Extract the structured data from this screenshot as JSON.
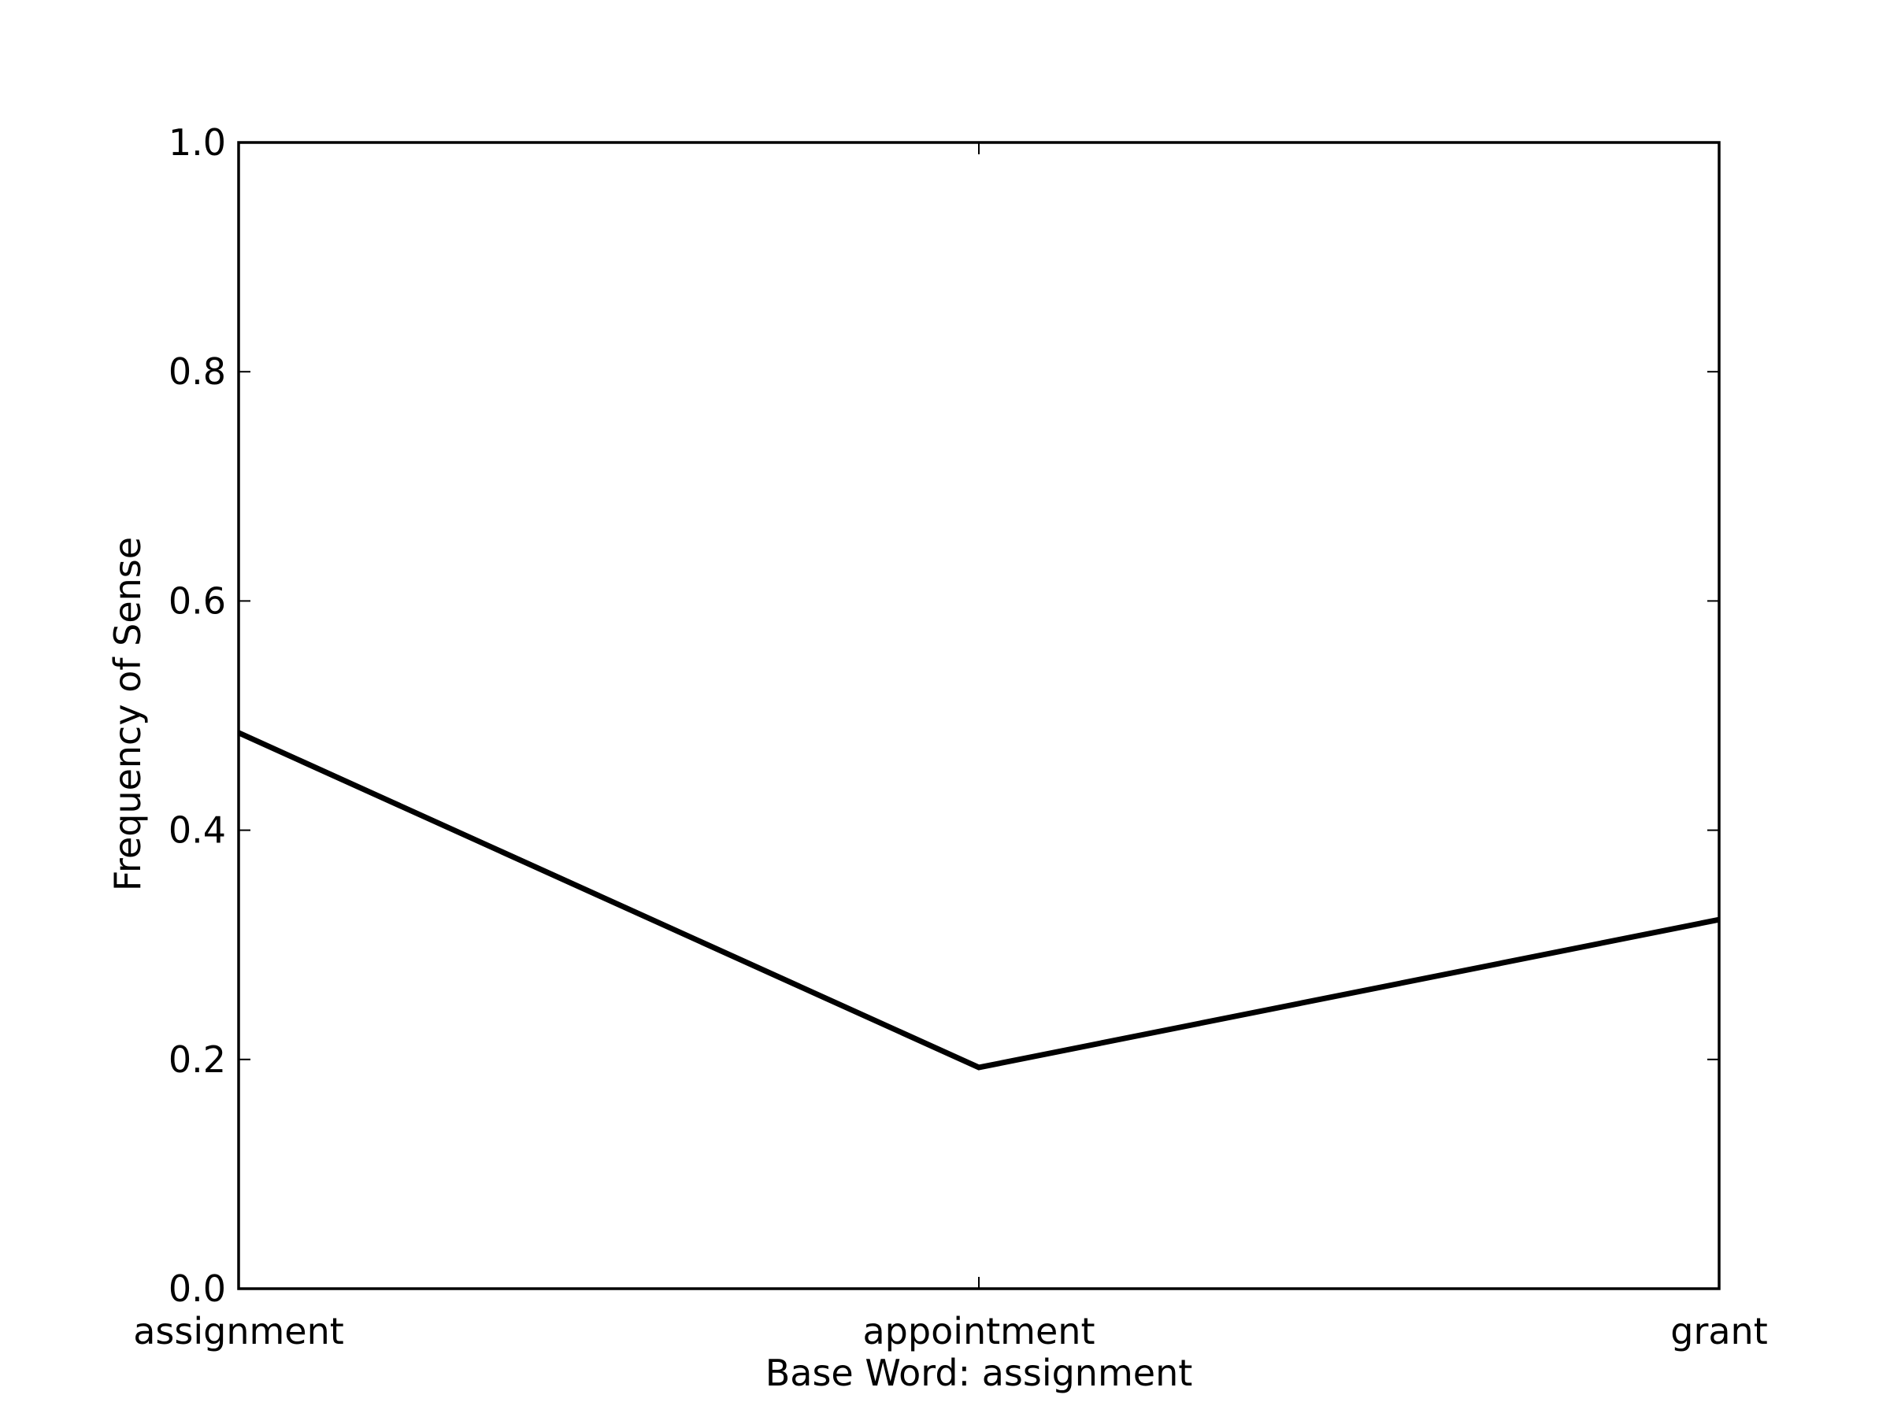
{
  "chart_data": {
    "type": "line",
    "title": "",
    "xlabel": "Base Word: assignment",
    "ylabel": "Frequency of Sense",
    "categories": [
      "assignment",
      "appointment",
      "grant"
    ],
    "series": [
      {
        "values": [
          0.485,
          0.193,
          0.322
        ],
        "color": "#000000"
      }
    ],
    "ylim": [
      0.0,
      1.0
    ],
    "yticks": [
      "0.0",
      "0.2",
      "0.4",
      "0.6",
      "0.8",
      "1.0"
    ],
    "ytick_values": [
      0.0,
      0.2,
      0.4,
      0.6,
      0.8,
      1.0
    ],
    "grid": false,
    "legend": "none"
  }
}
